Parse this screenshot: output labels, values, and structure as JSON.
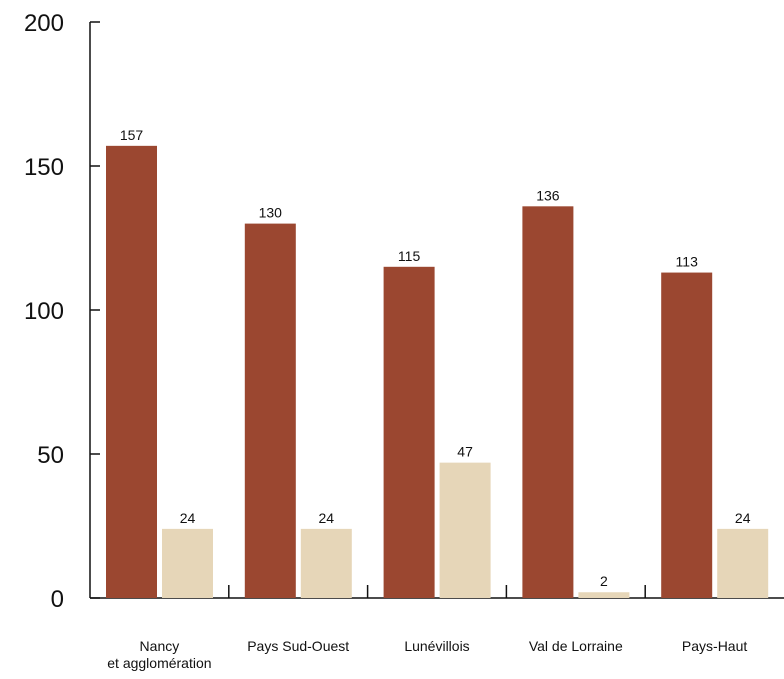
{
  "chart_data": {
    "type": "bar",
    "categories": [
      [
        "Nancy",
        "et agglomération"
      ],
      [
        "Pays Sud-Ouest"
      ],
      [
        "Lunévillois"
      ],
      [
        "Val de Lorraine"
      ],
      [
        "Pays-Haut"
      ]
    ],
    "series": [
      {
        "values": [
          157,
          130,
          115,
          136,
          113
        ]
      },
      {
        "values": [
          24,
          24,
          47,
          2,
          24
        ]
      }
    ],
    "colors": [
      "#9b4730",
      "#e6d6b8"
    ],
    "y_ticks": [
      "0",
      "50",
      "100",
      "150",
      "200"
    ],
    "ylim": [
      0,
      200
    ],
    "grid": false,
    "legend": "none"
  }
}
